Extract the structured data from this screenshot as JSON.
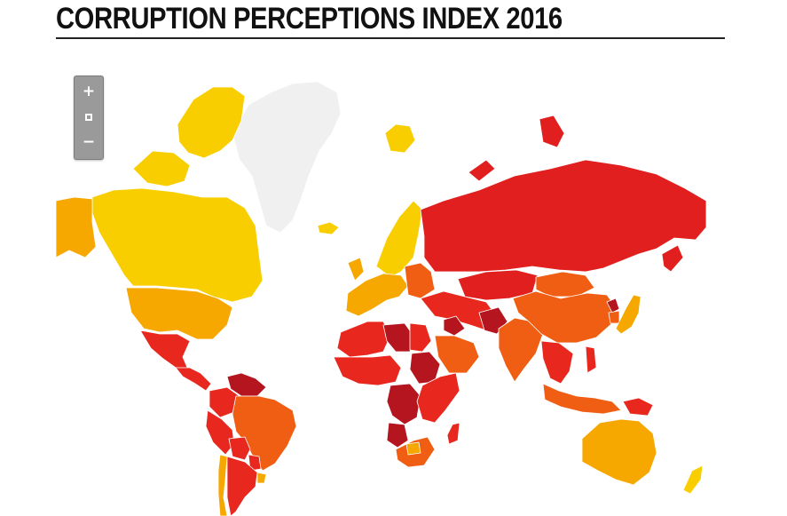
{
  "title": "CORRUPTION PERCEPTIONS INDEX 2016",
  "zoom": {
    "in_label": "+",
    "out_label": "−"
  },
  "map": {
    "no_data_color": "#f0f0f0",
    "score_colors": [
      "#f9ce00",
      "#f6a800",
      "#f05e14",
      "#e8281f",
      "#e11f1f",
      "#b4151f"
    ],
    "regions": [
      {
        "name": "Greenland",
        "color": "#f0f0f0"
      },
      {
        "name": "Canada",
        "color": "#f9ce00"
      },
      {
        "name": "Alaska",
        "color": "#f6a800"
      },
      {
        "name": "United States",
        "color": "#f6a800"
      },
      {
        "name": "Mexico",
        "color": "#e8281f"
      },
      {
        "name": "Central America",
        "color": "#e8281f"
      },
      {
        "name": "Venezuela",
        "color": "#b4151f"
      },
      {
        "name": "Colombia",
        "color": "#e8281f"
      },
      {
        "name": "Peru",
        "color": "#e8281f"
      },
      {
        "name": "Brazil",
        "color": "#f05e14"
      },
      {
        "name": "Bolivia",
        "color": "#e8281f"
      },
      {
        "name": "Paraguay",
        "color": "#e8281f"
      },
      {
        "name": "Argentina",
        "color": "#e8281f"
      },
      {
        "name": "Chile",
        "color": "#f6a800"
      },
      {
        "name": "Uruguay",
        "color": "#f6a800"
      },
      {
        "name": "Iceland",
        "color": "#f9ce00"
      },
      {
        "name": "Scandinavia",
        "color": "#f9ce00"
      },
      {
        "name": "Western Europe",
        "color": "#f6a800"
      },
      {
        "name": "Eastern Europe",
        "color": "#f05e14"
      },
      {
        "name": "Russia",
        "color": "#e11f1f"
      },
      {
        "name": "Kazakhstan",
        "color": "#e11f1f"
      },
      {
        "name": "Middle East",
        "color": "#e8281f"
      },
      {
        "name": "Iraq and Syria",
        "color": "#b4151f"
      },
      {
        "name": "Saudi Arabia",
        "color": "#f05e14"
      },
      {
        "name": "North Africa",
        "color": "#e8281f"
      },
      {
        "name": "Libya",
        "color": "#b4151f"
      },
      {
        "name": "Egypt",
        "color": "#e8281f"
      },
      {
        "name": "Sudan",
        "color": "#b4151f"
      },
      {
        "name": "West Africa",
        "color": "#e8281f"
      },
      {
        "name": "Central Africa",
        "color": "#b4151f"
      },
      {
        "name": "East Africa",
        "color": "#e8281f"
      },
      {
        "name": "Angola",
        "color": "#b4151f"
      },
      {
        "name": "Southern Africa",
        "color": "#f05e14"
      },
      {
        "name": "Botswana",
        "color": "#f6a800"
      },
      {
        "name": "Madagascar",
        "color": "#e8281f"
      },
      {
        "name": "Afghanistan",
        "color": "#b4151f"
      },
      {
        "name": "India",
        "color": "#f05e14"
      },
      {
        "name": "China",
        "color": "#f05e14"
      },
      {
        "name": "Mongolia",
        "color": "#f05e14"
      },
      {
        "name": "Japan",
        "color": "#f6a800"
      },
      {
        "name": "South Korea",
        "color": "#f05e14"
      },
      {
        "name": "North Korea",
        "color": "#b4151f"
      },
      {
        "name": "Southeast Asia",
        "color": "#e8281f"
      },
      {
        "name": "Indonesia",
        "color": "#f05e14"
      },
      {
        "name": "Papua New Guinea",
        "color": "#e8281f"
      },
      {
        "name": "Australia",
        "color": "#f6a800"
      },
      {
        "name": "New Zealand",
        "color": "#f9ce00"
      }
    ]
  }
}
